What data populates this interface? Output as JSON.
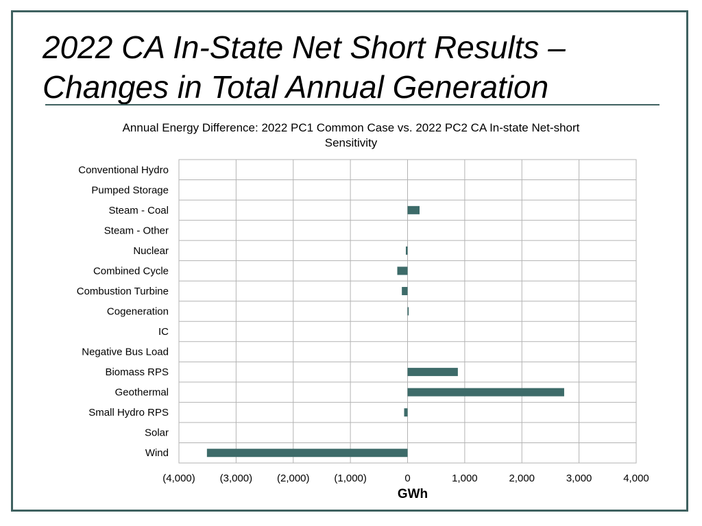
{
  "slide": {
    "title_line1": "2022 CA In-State Net Short Results –",
    "title_line2": "Changes in Total Annual Generation"
  },
  "colors": {
    "bar": "#3d6b69",
    "frame": "#3f6160",
    "grid": "#b3b3b3"
  },
  "chart_data": {
    "type": "bar",
    "orientation": "horizontal",
    "title": "Annual Energy Difference: 2022 PC1 Common Case vs. 2022 PC2 CA In-state Net-short Sensitivity",
    "xlabel": "GWh",
    "ylabel": "",
    "xlim": [
      -4000,
      4000
    ],
    "xticks": [
      -4000,
      -3000,
      -2000,
      -1000,
      0,
      1000,
      2000,
      3000,
      4000
    ],
    "xtick_labels": [
      "(4,000)",
      "(3,000)",
      "(2,000)",
      "(1,000)",
      "0",
      "1,000",
      "2,000",
      "3,000",
      "4,000"
    ],
    "grid": true,
    "categories": [
      "Conventional Hydro",
      "Pumped Storage",
      "Steam - Coal",
      "Steam - Other",
      "Nuclear",
      "Combined Cycle",
      "Combustion Turbine",
      "Cogeneration",
      "IC",
      "Negative Bus Load",
      "Biomass RPS",
      "Geothermal",
      "Small Hydro RPS",
      "Solar",
      "Wind"
    ],
    "values": [
      0,
      0,
      210,
      0,
      -30,
      -180,
      -100,
      20,
      0,
      0,
      880,
      2740,
      -60,
      0,
      -3510
    ]
  }
}
